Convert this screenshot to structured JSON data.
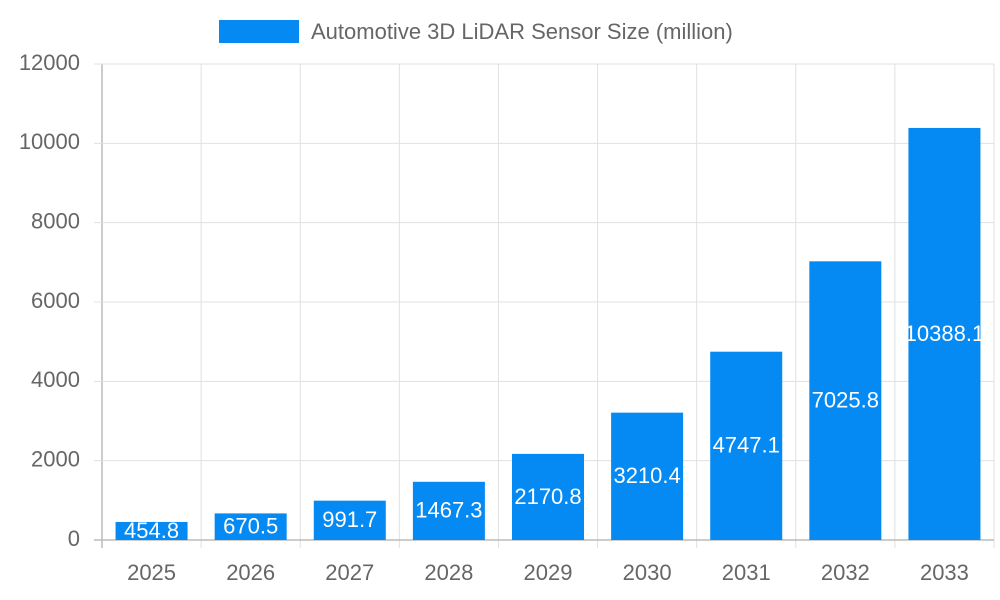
{
  "chart_data": {
    "type": "bar",
    "categories": [
      "2025",
      "2026",
      "2027",
      "2028",
      "2029",
      "2030",
      "2031",
      "2032",
      "2033"
    ],
    "series": [
      {
        "name": "Automotive 3D LiDAR Sensor Size (million)",
        "color": "#0589f2",
        "values": [
          454.8,
          670.5,
          991.7,
          1467.3,
          2170.8,
          3210.4,
          4747.1,
          7025.8,
          10388.1
        ]
      }
    ],
    "ylim": [
      0,
      12000
    ],
    "yticks": [
      0,
      2000,
      4000,
      6000,
      8000,
      10000,
      12000
    ],
    "grid": true,
    "legend": "top"
  }
}
